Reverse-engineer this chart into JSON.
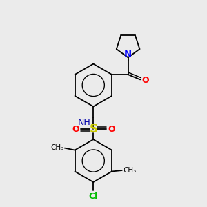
{
  "bg_color": "#ebebeb",
  "colors": {
    "C": "#000000",
    "N": "#0000ff",
    "O": "#ff0000",
    "S": "#cccc00",
    "Cl": "#00bb00",
    "NH": "#0000aa",
    "bond": "#000000"
  },
  "layout": {
    "xlim": [
      0,
      10
    ],
    "ylim": [
      0,
      10
    ]
  }
}
